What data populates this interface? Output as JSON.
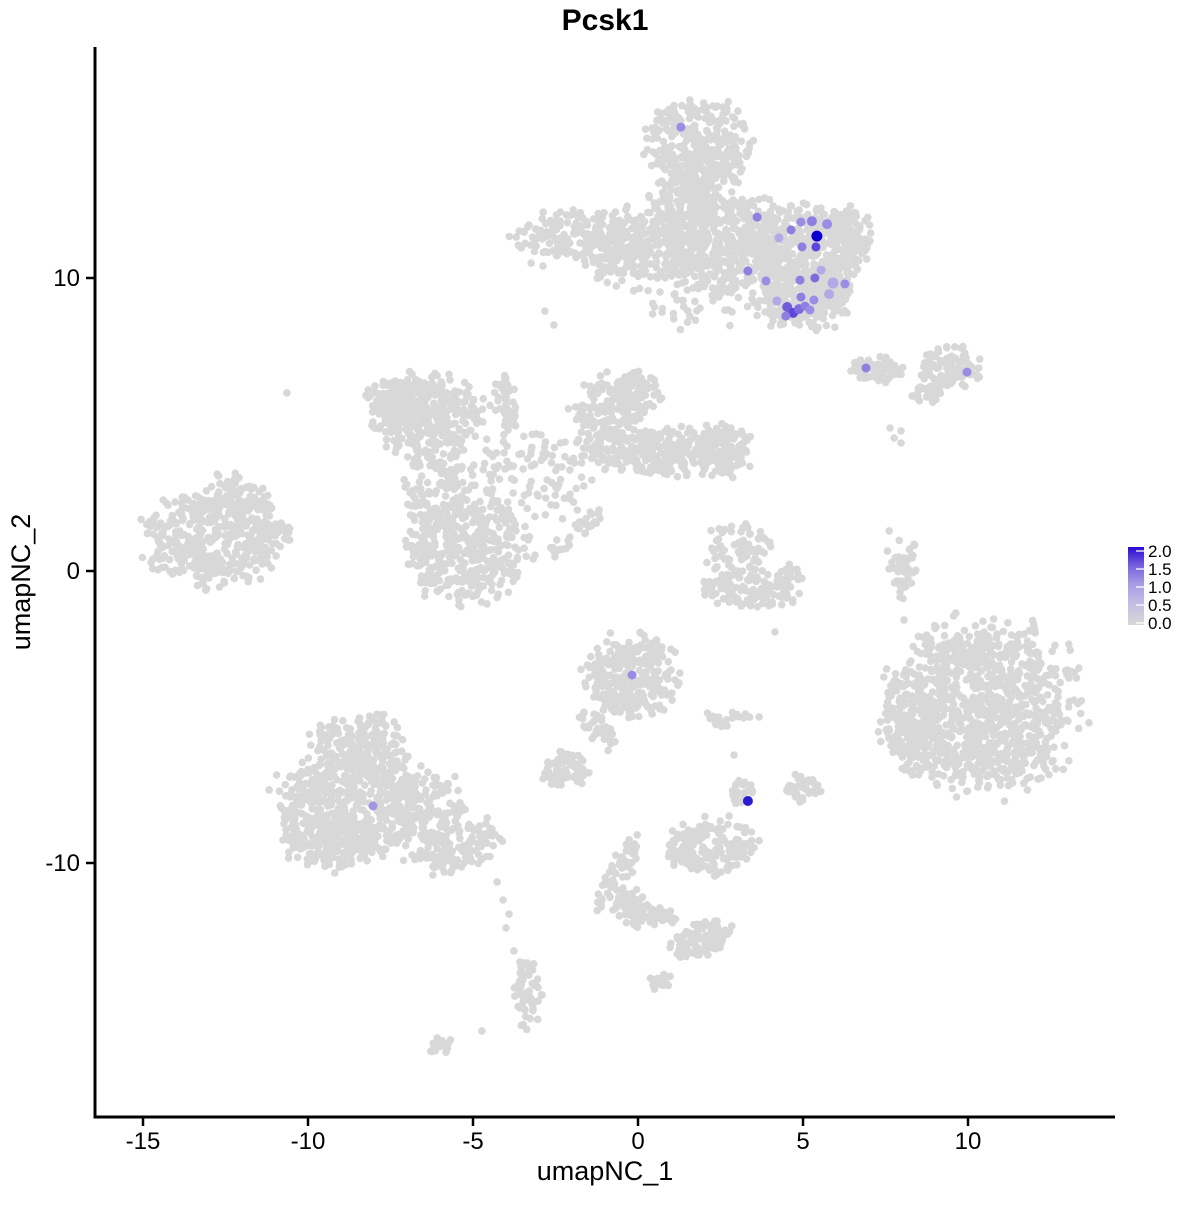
{
  "chart_data": {
    "type": "scatter",
    "title": "Pcsk1",
    "xlabel": "umapNC_1",
    "ylabel": "umapNC_2",
    "x_ticks": [
      "-15",
      "-10",
      "-5",
      "0",
      "5",
      "10"
    ],
    "x_tick_values": [
      -15,
      -10,
      -5,
      0,
      5,
      10
    ],
    "y_ticks": [
      "10",
      "0",
      "-10"
    ],
    "y_tick_values": [
      10,
      0,
      -10
    ],
    "xlim": [
      -16.5,
      14.5
    ],
    "ylim": [
      -18.6,
      17.9
    ],
    "grid": false,
    "legend": {
      "position": "right",
      "labels": [
        "2.0",
        "1.5",
        "1.0",
        "0.5",
        "0.0"
      ],
      "color_low": "#d8d8d8",
      "color_high": "#2a0ad5"
    },
    "point_color_background": "#d8d8d8",
    "cluster_format": "[center_x, center_y, radius_x, radius_y, rotation_deg, n_points] in umap data coordinates; background (zero-expression) cells",
    "clusters": [
      [
        1.88,
        14.54,
        1.45,
        1.54,
        0,
        330
      ],
      [
        1.36,
        12.49,
        0.91,
        1.02,
        0,
        130
      ],
      [
        0.06,
        11.06,
        1.76,
        1.3,
        0,
        260
      ],
      [
        2.55,
        11.19,
        1.88,
        1.6,
        0,
        420
      ],
      [
        4.91,
        10.96,
        1.73,
        1.43,
        -10,
        380
      ],
      [
        6.36,
        11.4,
        0.79,
        1.09,
        0,
        110
      ],
      [
        5.0,
        9.32,
        1.39,
        1.02,
        0,
        240
      ],
      [
        5.76,
        9.83,
        0.79,
        0.75,
        0,
        90
      ],
      [
        -2.06,
        11.47,
        1.52,
        0.78,
        0,
        140
      ],
      [
        -0.61,
        11.06,
        0.82,
        0.44,
        0,
        45
      ],
      [
        1.88,
        9.49,
        1.88,
        1.09,
        0,
        70
      ],
      [
        7.24,
        6.86,
        0.79,
        0.44,
        0,
        65
      ],
      [
        9.45,
        6.96,
        0.88,
        0.65,
        0,
        95
      ],
      [
        8.79,
        6.04,
        0.45,
        0.38,
        30,
        28
      ],
      [
        -6.36,
        5.29,
        1.58,
        1.37,
        15,
        300
      ],
      [
        -7.33,
        5.87,
        0.91,
        0.65,
        0,
        90
      ],
      [
        -4.03,
        5.84,
        0.3,
        0.99,
        10,
        40
      ],
      [
        -0.85,
        5.12,
        1.09,
        1.57,
        0,
        220
      ],
      [
        0.06,
        6.14,
        0.7,
        0.65,
        0,
        60
      ],
      [
        1.21,
        4.06,
        1.88,
        0.78,
        5,
        230
      ],
      [
        2.55,
        4.06,
        0.88,
        0.92,
        0,
        110
      ],
      [
        -3.21,
        3.38,
        1.7,
        1.57,
        0,
        110
      ],
      [
        -5.18,
        0.68,
        1.82,
        1.6,
        0,
        380
      ],
      [
        -5.97,
        3.0,
        1.09,
        1.43,
        0,
        130
      ],
      [
        -1.88,
        1.3,
        0.27,
        1.23,
        -45,
        32
      ],
      [
        -12.82,
        1.16,
        2.0,
        1.57,
        0,
        420
      ],
      [
        -11.85,
        2.63,
        0.94,
        0.44,
        -35,
        55
      ],
      [
        -11.03,
        1.3,
        0.7,
        0.38,
        5,
        32
      ],
      [
        3.0,
        0.75,
        1.0,
        0.89,
        0,
        75
      ],
      [
        3.33,
        -0.68,
        1.39,
        0.55,
        -8,
        115
      ],
      [
        4.58,
        -0.17,
        0.39,
        0.44,
        0,
        26
      ],
      [
        -0.18,
        -3.58,
        1.39,
        1.33,
        0,
        280
      ],
      [
        -1.24,
        -5.32,
        0.33,
        0.89,
        35,
        38
      ],
      [
        -2.18,
        -6.76,
        0.7,
        0.61,
        0,
        75
      ],
      [
        10.52,
        -4.61,
        2.7,
        2.83,
        0,
        950
      ],
      [
        8.3,
        -5.32,
        0.88,
        1.4,
        0,
        160
      ],
      [
        7.85,
        0.31,
        0.24,
        1.06,
        8,
        26
      ],
      [
        8.3,
        0.14,
        0.21,
        0.89,
        -5,
        20
      ],
      [
        -8.55,
        -5.8,
        1.3,
        0.89,
        0,
        160
      ],
      [
        -8.12,
        -7.85,
        2.61,
        1.57,
        0,
        580
      ],
      [
        -9.3,
        -9.22,
        1.55,
        0.89,
        0,
        190
      ],
      [
        -5.52,
        -9.39,
        1.39,
        0.78,
        20,
        130
      ],
      [
        -3.39,
        -14.51,
        0.42,
        1.06,
        0,
        55
      ],
      [
        -5.97,
        -16.18,
        0.39,
        0.27,
        30,
        16
      ],
      [
        2.24,
        -9.39,
        1.3,
        0.89,
        0,
        170
      ],
      [
        3.12,
        -7.51,
        0.39,
        0.38,
        0,
        22
      ],
      [
        5.0,
        -7.44,
        0.52,
        0.48,
        0,
        45
      ],
      [
        -0.61,
        -10.31,
        0.33,
        1.47,
        -28,
        65
      ],
      [
        -0.21,
        -11.43,
        0.45,
        0.65,
        0,
        55
      ],
      [
        0.58,
        -11.84,
        0.58,
        0.31,
        0,
        32
      ],
      [
        1.94,
        -12.56,
        0.94,
        0.51,
        20,
        85
      ],
      [
        0.64,
        -13.99,
        0.33,
        0.31,
        0,
        18
      ],
      [
        2.67,
        -5.05,
        0.64,
        0.31,
        0,
        22
      ]
    ],
    "gray_dots": [
      [
        -10.64,
        6.08
      ],
      [
        -2.82,
        8.87
      ],
      [
        -2.55,
        8.4
      ],
      [
        -3.24,
        10.51
      ],
      [
        -2.88,
        10.41
      ],
      [
        7.64,
        4.88
      ],
      [
        7.97,
        4.78
      ],
      [
        7.76,
        4.54
      ],
      [
        7.97,
        4.37
      ],
      [
        7.94,
        -0.89
      ],
      [
        8.06,
        -1.67
      ],
      [
        8.79,
        -2.39
      ],
      [
        8.73,
        -2.83
      ],
      [
        9.06,
        -2.9
      ],
      [
        8.27,
        -3.07
      ],
      [
        7.76,
        -3.75
      ],
      [
        8.52,
        -3.96
      ],
      [
        4.15,
        -2.08
      ],
      [
        3.67,
        -4.98
      ],
      [
        2.76,
        -8.36
      ],
      [
        3.09,
        -8.74
      ],
      [
        -4.73,
        -15.7
      ],
      [
        -4.27,
        -10.61
      ],
      [
        -4.09,
        -11.23
      ],
      [
        -3.91,
        -11.71
      ],
      [
        -4.0,
        -12.18
      ],
      [
        -3.76,
        -12.97
      ],
      [
        -0.76,
        -11.57
      ],
      [
        -3.58,
        -13.34
      ],
      [
        5.27,
        8.36
      ],
      [
        2.91,
        -6.28
      ]
    ],
    "expression_point_format": "[x, y, expression_value, color, radius_px] cells expressing Pcsk1",
    "expression_points": [
      [
        1.3,
        15.15,
        0.9,
        "#9b8ce4",
        4.5
      ],
      [
        3.61,
        12.08,
        1.0,
        "#8f7fe0",
        4.5
      ],
      [
        4.64,
        11.64,
        1.0,
        "#8f7fe0",
        4.5
      ],
      [
        4.94,
        11.91,
        0.9,
        "#9b8ce4",
        4.5
      ],
      [
        5.27,
        11.94,
        1.0,
        "#8f7fe0",
        5
      ],
      [
        5.73,
        11.84,
        0.9,
        "#9b8ce4",
        5
      ],
      [
        5.42,
        11.43,
        2.0,
        "#0b00cf",
        5.5
      ],
      [
        5.39,
        11.06,
        1.5,
        "#5b48d8",
        4.5
      ],
      [
        4.97,
        11.06,
        1.0,
        "#8f7fe0",
        4.5
      ],
      [
        4.27,
        11.37,
        0.6,
        "#b3a9e6",
        4.5
      ],
      [
        3.33,
        10.24,
        1.0,
        "#8f7fe0",
        4.5
      ],
      [
        3.88,
        9.9,
        0.9,
        "#9b8ce4",
        4.5
      ],
      [
        4.91,
        9.93,
        1.0,
        "#8f7fe0",
        4.5
      ],
      [
        5.36,
        10.0,
        1.3,
        "#7c6ade",
        4.5
      ],
      [
        5.91,
        9.83,
        0.6,
        "#b3a9e6",
        5.5
      ],
      [
        5.55,
        10.27,
        0.6,
        "#b3a9e6",
        4.5
      ],
      [
        4.21,
        9.22,
        0.6,
        "#b3a9e6",
        4.5
      ],
      [
        4.94,
        9.35,
        1.0,
        "#8f7fe0",
        4.5
      ],
      [
        5.79,
        9.45,
        0.6,
        "#b3a9e6",
        5
      ],
      [
        5.33,
        9.25,
        0.9,
        "#9b8ce4",
        4.5
      ],
      [
        4.52,
        9.01,
        1.4,
        "#6f5cdb",
        5
      ],
      [
        4.7,
        8.81,
        1.5,
        "#5b48d8",
        5
      ],
      [
        4.88,
        8.94,
        1.3,
        "#7c6ade",
        5
      ],
      [
        5.06,
        9.04,
        1.0,
        "#8f7fe0",
        4.5
      ],
      [
        5.21,
        8.91,
        0.9,
        "#9b8ce4",
        4.5
      ],
      [
        4.48,
        8.7,
        1.0,
        "#8f7fe0",
        4.5
      ],
      [
        6.27,
        9.8,
        0.9,
        "#9b8ce4",
        4.5
      ],
      [
        6.91,
        6.93,
        1.0,
        "#8f7fe0",
        4.5
      ],
      [
        9.97,
        6.79,
        0.9,
        "#9b8ce4",
        4.5
      ],
      [
        -0.18,
        -3.55,
        0.9,
        "#9b8ce4",
        4.5
      ],
      [
        -8.03,
        -8.02,
        0.8,
        "#a295e2",
        4.5
      ],
      [
        3.33,
        -7.85,
        1.8,
        "#2d1bd4",
        5
      ]
    ]
  }
}
